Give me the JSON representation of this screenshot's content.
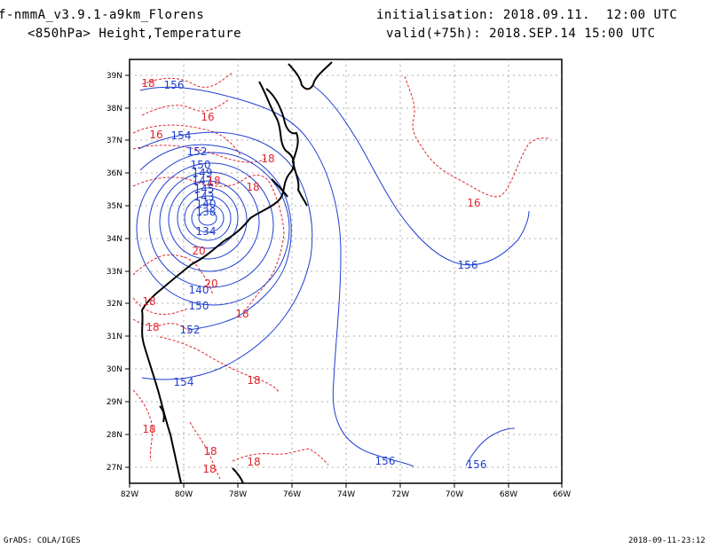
{
  "header": {
    "model": "f-nmmA_v3.9.1-a9km_Florens",
    "level_field": "<850hPa> Height,Temperature",
    "init": "initialisation: 2018.09.11.  12:00 UTC",
    "valid": "valid(+75h): 2018.SEP.14 15:00 UTC"
  },
  "footer": {
    "credit": "GrADS: COLA/IGES",
    "timestamp": "2018-09-11-23:12"
  },
  "axes": {
    "lon_ticks": [
      "82W",
      "80W",
      "78W",
      "76W",
      "74W",
      "72W",
      "70W",
      "68W",
      "66W"
    ],
    "lat_ticks": [
      "39N",
      "38N",
      "37N",
      "36N",
      "35N",
      "34N",
      "33N",
      "32N",
      "31N",
      "30N",
      "29N",
      "28N",
      "27N"
    ]
  },
  "colors": {
    "height": "#1f3fd0",
    "temperature": "#e0242c",
    "coast": "#000000",
    "grid": "#999999"
  },
  "height_labels": [
    "156",
    "154",
    "152",
    "150",
    "149",
    "147",
    "145",
    "143",
    "140",
    "138",
    "134",
    "140",
    "150",
    "152",
    "154",
    "156",
    "156",
    "156"
  ],
  "temperature_labels": [
    "18",
    "16",
    "16",
    "18",
    "18",
    "18",
    "16",
    "20",
    "20",
    "18",
    "18",
    "18",
    "18",
    "18",
    "18",
    "18",
    "18"
  ]
}
